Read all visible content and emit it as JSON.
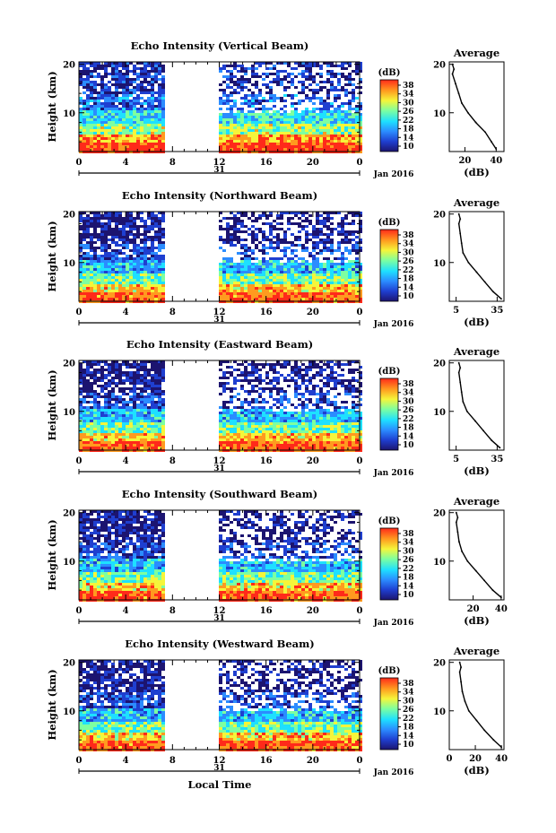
{
  "chart_data": [
    {
      "type": "heatmap",
      "title": "Echo Intensity (Vertical Beam)",
      "ylabel": "Height (km)",
      "yticks": [
        10,
        20
      ],
      "ylim": [
        2,
        20.5
      ],
      "xticks": [
        "0",
        "4",
        "8",
        "12",
        "16",
        "20",
        "0"
      ],
      "xlim": [
        0,
        24
      ],
      "gap_hours": [
        7.4,
        11.8
      ],
      "day_label": "31",
      "date_label": "Jan 2016",
      "colorbar": {
        "title": "(dB)",
        "ticks": [
          "38",
          "34",
          "30",
          "26",
          "22",
          "18",
          "14",
          "10"
        ],
        "range": [
          10,
          40
        ]
      },
      "average_profile": {
        "title": "Average",
        "xlabel": "(dB)",
        "xticks": [
          "20",
          "40"
        ],
        "xlim": [
          10,
          45
        ],
        "yticks": [
          10,
          20
        ],
        "height": [
          2.5,
          4,
          6,
          8,
          10,
          12,
          14,
          16,
          18,
          19,
          20
        ],
        "value": [
          40,
          37,
          33,
          27,
          22,
          18,
          16,
          14,
          12,
          13,
          12
        ]
      }
    },
    {
      "type": "heatmap",
      "title": "Echo Intensity (Northward Beam)",
      "ylabel": "Height (km)",
      "yticks": [
        10,
        20
      ],
      "ylim": [
        2,
        20.5
      ],
      "xticks": [
        "0",
        "4",
        "8",
        "12",
        "16",
        "20",
        "0"
      ],
      "xlim": [
        0,
        24
      ],
      "gap_hours": [
        7.4,
        11.8
      ],
      "day_label": "31",
      "date_label": "Jan 2016",
      "colorbar": {
        "title": "(dB)",
        "ticks": [
          "38",
          "34",
          "30",
          "26",
          "22",
          "18",
          "14",
          "10"
        ],
        "range": [
          10,
          40
        ]
      },
      "average_profile": {
        "title": "Average",
        "xlabel": "(dB)",
        "xticks": [
          "5",
          "35"
        ],
        "xlim": [
          0,
          40
        ],
        "yticks": [
          10,
          20
        ],
        "height": [
          2.5,
          4,
          6,
          8,
          10,
          12,
          14,
          16,
          18,
          19,
          20
        ],
        "value": [
          38,
          32,
          26,
          20,
          14,
          10,
          9,
          8,
          7,
          8,
          7
        ]
      }
    },
    {
      "type": "heatmap",
      "title": "Echo Intensity (Eastward Beam)",
      "ylabel": "Height (km)",
      "yticks": [
        10,
        20
      ],
      "ylim": [
        2,
        20.5
      ],
      "xticks": [
        "0",
        "4",
        "8",
        "12",
        "16",
        "20",
        "0"
      ],
      "xlim": [
        0,
        24
      ],
      "gap_hours": [
        7.4,
        11.8
      ],
      "day_label": "31",
      "date_label": "Jan 2016",
      "colorbar": {
        "title": "(dB)",
        "ticks": [
          "38",
          "34",
          "30",
          "26",
          "22",
          "18",
          "14",
          "10"
        ],
        "range": [
          10,
          40
        ]
      },
      "average_profile": {
        "title": "Average",
        "xlabel": "(dB)",
        "xticks": [
          "5",
          "35"
        ],
        "xlim": [
          0,
          40
        ],
        "yticks": [
          10,
          20
        ],
        "height": [
          2.5,
          4,
          6,
          8,
          10,
          12,
          14,
          16,
          18,
          19,
          20
        ],
        "value": [
          37,
          31,
          25,
          19,
          13,
          10,
          9,
          8,
          7,
          8,
          7
        ]
      }
    },
    {
      "type": "heatmap",
      "title": "Echo Intensity (Southward Beam)",
      "ylabel": "Height (km)",
      "yticks": [
        10,
        20
      ],
      "ylim": [
        2,
        20.5
      ],
      "xticks": [
        "0",
        "4",
        "8",
        "12",
        "16",
        "20",
        "0"
      ],
      "xlim": [
        0,
        24
      ],
      "gap_hours": [
        7.4,
        11.8
      ],
      "day_label": "31",
      "date_label": "Jan 2016",
      "colorbar": {
        "title": "(dB)",
        "ticks": [
          "38",
          "34",
          "30",
          "26",
          "22",
          "18",
          "14",
          "10"
        ],
        "range": [
          10,
          40
        ]
      },
      "average_profile": {
        "title": "Average",
        "xlabel": "(dB)",
        "xticks": [
          "20",
          "40"
        ],
        "xlim": [
          3,
          42
        ],
        "yticks": [
          10,
          20
        ],
        "height": [
          2.5,
          4,
          6,
          8,
          10,
          12,
          14,
          16,
          18,
          19,
          20
        ],
        "value": [
          40,
          34,
          28,
          22,
          16,
          12,
          10,
          9,
          8,
          9,
          8
        ]
      }
    },
    {
      "type": "heatmap",
      "title": "Echo Intensity (Westward Beam)",
      "ylabel": "Height (km)",
      "yticks": [
        10,
        20
      ],
      "ylim": [
        2,
        20.5
      ],
      "xticks": [
        "0",
        "4",
        "8",
        "12",
        "16",
        "20",
        "0"
      ],
      "xlim": [
        0,
        24
      ],
      "gap_hours": [
        7.4,
        11.8
      ],
      "day_label": "31",
      "date_label": "Jan 2016",
      "colorbar": {
        "title": "(dB)",
        "ticks": [
          "38",
          "34",
          "30",
          "26",
          "22",
          "18",
          "14",
          "10"
        ],
        "range": [
          10,
          40
        ]
      },
      "average_profile": {
        "title": "Average",
        "xlabel": "(dB)",
        "xticks": [
          "0",
          "20",
          "40"
        ],
        "xlim": [
          0,
          42
        ],
        "yticks": [
          10,
          20
        ],
        "height": [
          2.5,
          4,
          6,
          8,
          10,
          12,
          14,
          16,
          18,
          19,
          20
        ],
        "value": [
          40,
          34,
          27,
          21,
          15,
          12,
          10,
          9,
          8,
          9,
          8
        ]
      }
    }
  ],
  "figure": {
    "xlabel": "Local Time"
  },
  "colors": {
    "colormap": [
      "#1c1470",
      "#1f3fd0",
      "#2b8cff",
      "#1ee0ff",
      "#7dffa0",
      "#f5f53a",
      "#ff9a1f",
      "#ff2a1a"
    ],
    "axis": "#000000",
    "background": "#ffffff"
  }
}
